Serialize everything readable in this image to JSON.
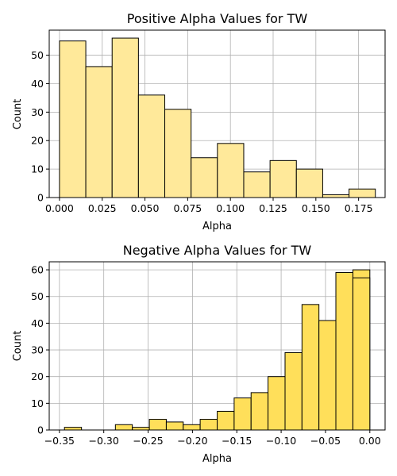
{
  "chart_data": [
    {
      "type": "bar",
      "subtype": "histogram",
      "title": "Positive Alpha Values for TW",
      "xlabel": "Alpha",
      "ylabel": "Count",
      "xlim": [
        -0.006,
        0.1905
      ],
      "ylim": [
        0,
        58.8
      ],
      "grid": true,
      "bar_color": "#ffe99a",
      "edge_color": "#000000",
      "bins": [
        {
          "start": 0.0,
          "end": 0.0154,
          "count": 55
        },
        {
          "start": 0.0154,
          "end": 0.0308,
          "count": 46
        },
        {
          "start": 0.0308,
          "end": 0.0462,
          "count": 56
        },
        {
          "start": 0.0462,
          "end": 0.0616,
          "count": 36
        },
        {
          "start": 0.0616,
          "end": 0.077,
          "count": 31
        },
        {
          "start": 0.077,
          "end": 0.0924,
          "count": 14
        },
        {
          "start": 0.0924,
          "end": 0.1078,
          "count": 19
        },
        {
          "start": 0.1078,
          "end": 0.1232,
          "count": 9
        },
        {
          "start": 0.1232,
          "end": 0.1386,
          "count": 13
        },
        {
          "start": 0.1386,
          "end": 0.154,
          "count": 10
        },
        {
          "start": 0.154,
          "end": 0.1694,
          "count": 1
        },
        {
          "start": 0.1694,
          "end": 0.1848,
          "count": 3
        }
      ],
      "xticks": [
        0.0,
        0.025,
        0.05,
        0.075,
        0.1,
        0.125,
        0.15,
        0.175
      ],
      "xtick_labels": [
        "0.000",
        "0.025",
        "0.050",
        "0.075",
        "0.100",
        "0.125",
        "0.150",
        "0.175"
      ],
      "yticks": [
        0,
        10,
        20,
        30,
        40,
        50
      ],
      "ytick_labels": [
        "0",
        "10",
        "20",
        "30",
        "40",
        "50"
      ]
    },
    {
      "type": "bar",
      "subtype": "histogram",
      "title": "Negative Alpha Values for TW",
      "xlabel": "Alpha",
      "ylabel": "Count",
      "xlim": [
        -0.3615,
        0.0172
      ],
      "ylim": [
        0,
        63
      ],
      "grid": true,
      "bar_color": "#ffdf5a",
      "edge_color": "#000000",
      "bins": [
        {
          "start": -0.3443,
          "end": -0.3251,
          "count": 1
        },
        {
          "start": -0.3251,
          "end": -0.306,
          "count": 0
        },
        {
          "start": -0.306,
          "end": -0.2869,
          "count": 0
        },
        {
          "start": -0.2869,
          "end": -0.2678,
          "count": 2
        },
        {
          "start": -0.2678,
          "end": -0.2486,
          "count": 1
        },
        {
          "start": -0.2486,
          "end": -0.2295,
          "count": 4
        },
        {
          "start": -0.2295,
          "end": -0.2104,
          "count": 3
        },
        {
          "start": -0.2104,
          "end": -0.1913,
          "count": 2
        },
        {
          "start": -0.1913,
          "end": -0.1721,
          "count": 4
        },
        {
          "start": -0.1721,
          "end": -0.153,
          "count": 7
        },
        {
          "start": -0.153,
          "end": -0.1339,
          "count": 12
        },
        {
          "start": -0.1339,
          "end": -0.1148,
          "count": 14
        },
        {
          "start": -0.1148,
          "end": -0.0956,
          "count": 20
        },
        {
          "start": -0.0956,
          "end": -0.0765,
          "count": 29
        },
        {
          "start": -0.0765,
          "end": -0.0574,
          "count": 47
        },
        {
          "start": -0.0574,
          "end": -0.0383,
          "count": 41
        },
        {
          "start": -0.0383,
          "end": -0.0191,
          "count": 59
        },
        {
          "start": -0.0191,
          "end": 0.0,
          "count": 60
        }
      ],
      "extra_bar": {
        "start": -0.0191,
        "end": 0.0,
        "count": 57
      },
      "xticks": [
        -0.35,
        -0.3,
        -0.25,
        -0.2,
        -0.15,
        -0.1,
        -0.05,
        0.0
      ],
      "xtick_labels": [
        "−0.35",
        "−0.30",
        "−0.25",
        "−0.20",
        "−0.15",
        "−0.10",
        "−0.05",
        "0.00"
      ],
      "yticks": [
        0,
        10,
        20,
        30,
        40,
        50,
        60
      ],
      "ytick_labels": [
        "0",
        "10",
        "20",
        "30",
        "40",
        "50",
        "60"
      ]
    }
  ]
}
